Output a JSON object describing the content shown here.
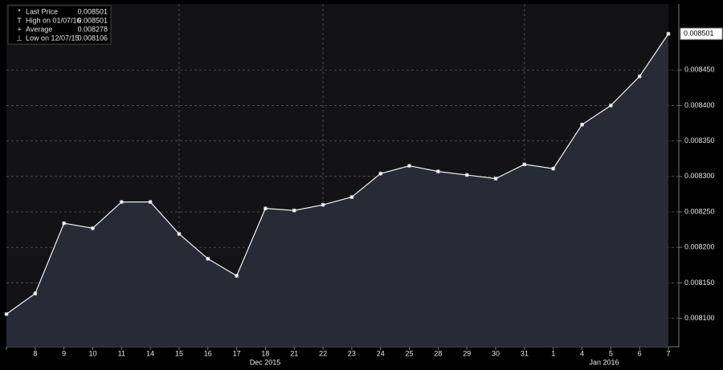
{
  "chart_data": {
    "type": "area-line",
    "categories": [
      null,
      "8",
      "9",
      "10",
      "11",
      "14",
      "15",
      "16",
      "17",
      "18",
      "21",
      "22",
      "23",
      "24",
      "25",
      "28",
      "29",
      "30",
      "31",
      "1",
      "4",
      "5",
      "6",
      "7"
    ],
    "x_group_labels": [
      "Dec 2015",
      "Jan 2016"
    ],
    "values": [
      0.008106,
      0.008135,
      0.008234,
      0.008227,
      0.008264,
      0.008264,
      0.008219,
      0.008184,
      0.00816,
      0.008255,
      0.008252,
      0.00826,
      0.008271,
      0.008304,
      0.008315,
      0.008307,
      0.008302,
      0.008297,
      0.008317,
      0.008311,
      0.008373,
      0.0084,
      0.008441,
      0.008501
    ],
    "color": "#f0f0f0",
    "area_color": "#262b36",
    "ylim": [
      0.00806,
      0.008543
    ],
    "yticks": [
      {
        "value": 0.0081,
        "label": "0.008100"
      },
      {
        "value": 0.00815,
        "label": "0.008150"
      },
      {
        "value": 0.0082,
        "label": "0.008200"
      },
      {
        "value": 0.00825,
        "label": "0.008250"
      },
      {
        "value": 0.0083,
        "label": "0.008300"
      },
      {
        "value": 0.00835,
        "label": "0.008350"
      },
      {
        "value": 0.0084,
        "label": "0.008400"
      },
      {
        "value": 0.00845,
        "label": "0.008450"
      }
    ],
    "last_label": "0.008501",
    "grid": true,
    "legend": [
      {
        "name": "Last Price",
        "value": "0.008501"
      },
      {
        "name": "High on 01/07/16",
        "value": "0.008501"
      },
      {
        "name": "Average",
        "value": "0.008278"
      },
      {
        "name": "Low on 12/07/15",
        "value": "0.008106"
      }
    ]
  }
}
